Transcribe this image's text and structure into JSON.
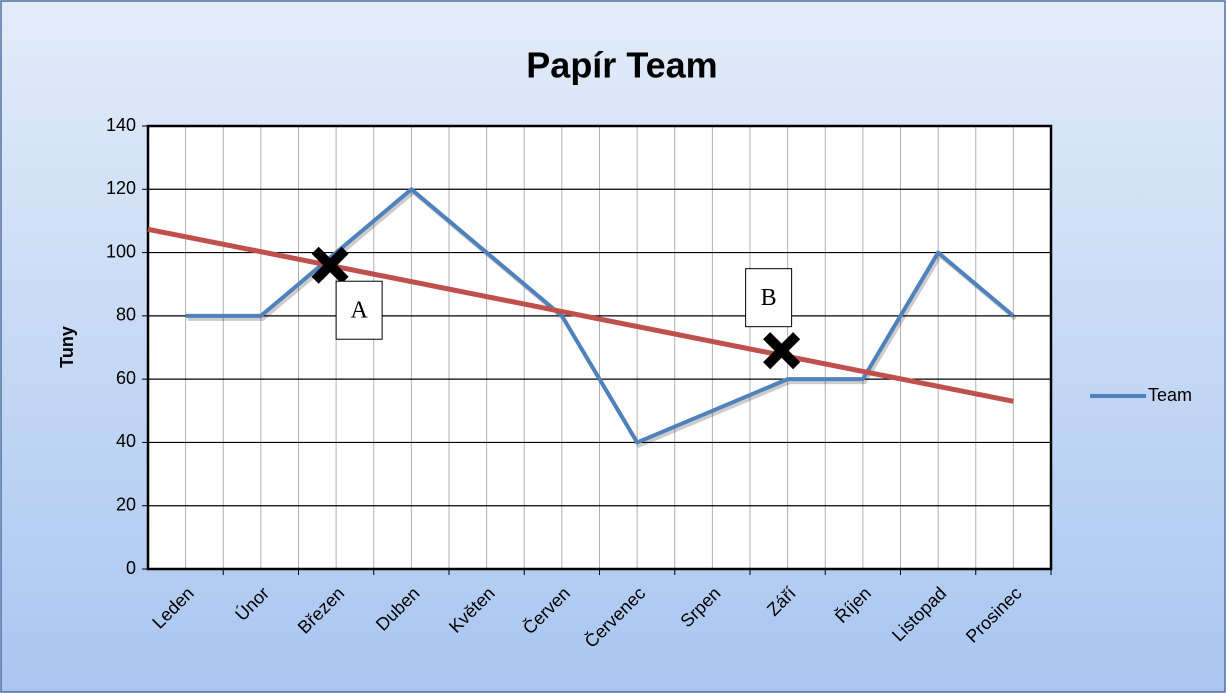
{
  "chart_data": {
    "type": "line",
    "title": "Papír Team",
    "y_label": "Tuny",
    "categories": [
      "Leden",
      "Únor",
      "Březen",
      "Duben",
      "Květen",
      "Červen",
      "Červenec",
      "Srpen",
      "Září",
      "Říjen",
      "Listopad",
      "Prosinec"
    ],
    "series": [
      {
        "name": "Team",
        "color": "#4f81bd",
        "values": [
          80,
          80,
          100,
          120,
          100,
          80,
          40,
          50,
          60,
          60,
          100,
          80
        ]
      }
    ],
    "trendline": {
      "color": "#c0504d",
      "values": [
        105,
        53
      ],
      "backward": 0.5
    },
    "annotations": [
      {
        "label": "A",
        "category": 2,
        "value": 96,
        "box": "below-right"
      },
      {
        "label": "B",
        "category": 8,
        "value": 69,
        "box": "above-left"
      }
    ],
    "ylim": [
      0,
      140
    ],
    "yticks": [
      0,
      20,
      40,
      60,
      80,
      100,
      120,
      140
    ],
    "grid": true,
    "legend": "right"
  }
}
